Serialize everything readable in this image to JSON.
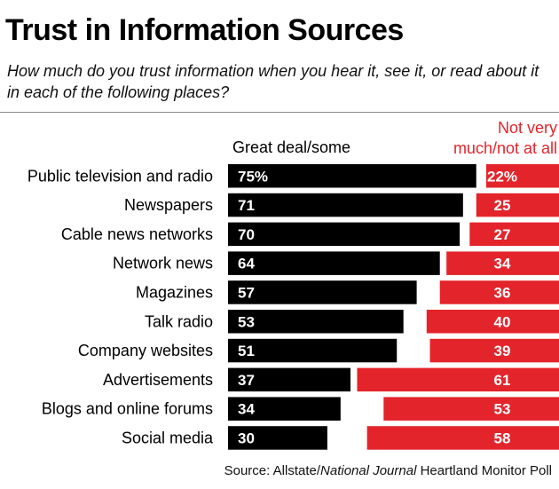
{
  "header": {
    "title": "Trust in Information Sources",
    "subtitle": "How much do you trust information when you hear it, see it, or read about it in each of the following places?"
  },
  "legend": {
    "great_deal": "Great deal/some",
    "not_very": "Not very much/not at all"
  },
  "source": {
    "prefix": "Source: Allstate/",
    "italic": "National Journal",
    "suffix": " Heartland Monitor Poll"
  },
  "colors": {
    "great_deal": "#000000",
    "not_very": "#e3242b",
    "text_on_bar": "#ffffff"
  },
  "chart_data": {
    "type": "bar",
    "orientation": "horizontal",
    "stacked": "diverging",
    "title": "Trust in Information Sources",
    "categories": [
      "Public television and radio",
      "Newspapers",
      "Cable news networks",
      "Network news",
      "Magazines",
      "Talk radio",
      "Company websites",
      "Advertisements",
      "Blogs and online forums",
      "Social media"
    ],
    "series": [
      {
        "name": "Great deal/some",
        "values": [
          75,
          71,
          70,
          64,
          57,
          53,
          51,
          37,
          34,
          30
        ]
      },
      {
        "name": "Not very much/not at all",
        "values": [
          22,
          25,
          27,
          34,
          36,
          40,
          39,
          61,
          53,
          58
        ]
      }
    ],
    "value_labels": {
      "Great deal/some": [
        "75%",
        "71",
        "70",
        "64",
        "57",
        "53",
        "51",
        "37",
        "34",
        "30"
      ],
      "Not very much/not at all": [
        "22%",
        "25",
        "27",
        "34",
        "36",
        "40",
        "39",
        "61",
        "53",
        "58"
      ]
    },
    "grid": false
  }
}
